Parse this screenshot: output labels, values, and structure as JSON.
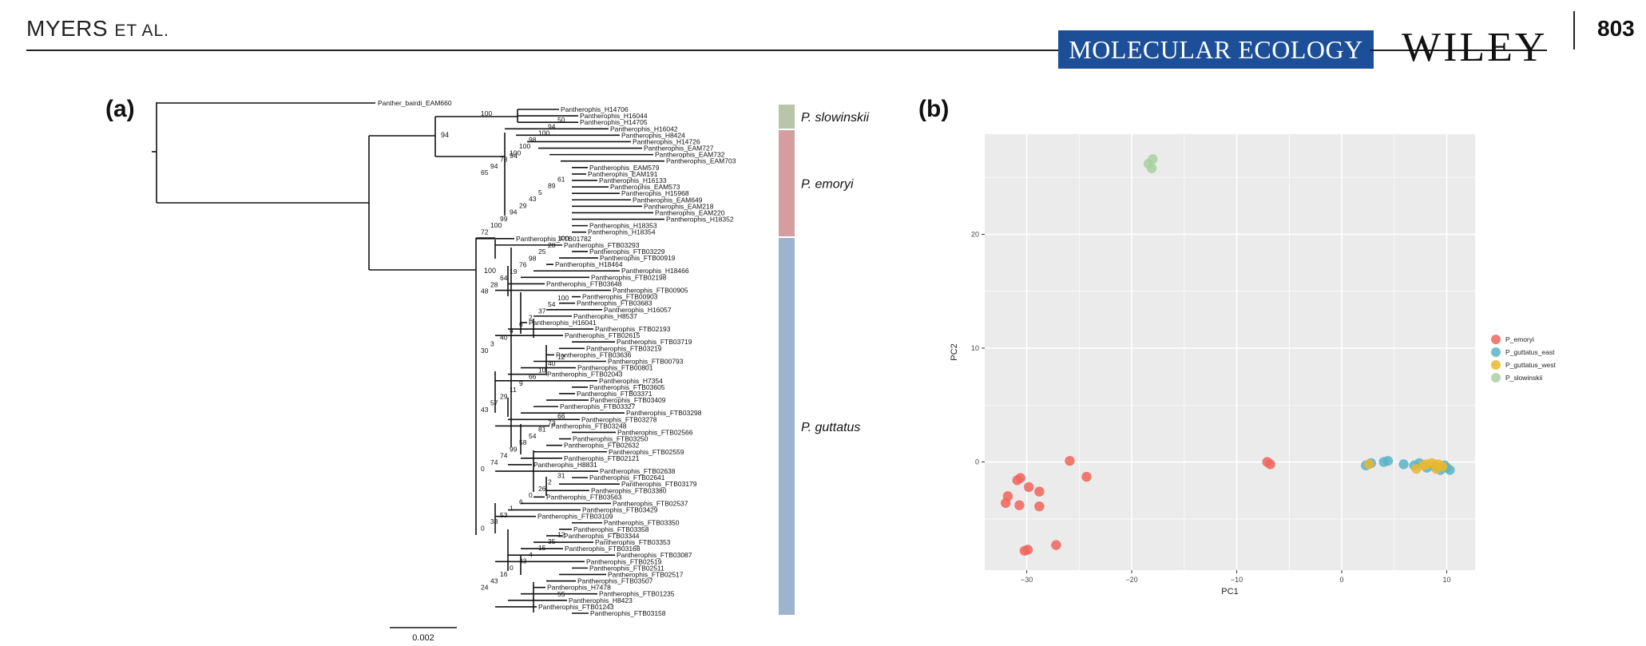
{
  "header": {
    "authors_main": "MYERS",
    "authors_suffix": "ET AL.",
    "journal": "MOLECULAR ECOLOGY",
    "publisher": "WILEY",
    "page_number": "803"
  },
  "panel_a": {
    "label": "(a)",
    "scale_bar_label": "0.002",
    "clade_labels": [
      "P. slowinskii",
      "P. emoryi",
      "P. guttatus"
    ],
    "clade_colors": [
      "#b9c4a8",
      "#d49e9e",
      "#9db4cf"
    ],
    "outgroup": "Panther_bairdi_EAM660",
    "taxa": [
      "Pantherophis_H14706",
      "Pantherophis_H16044",
      "Pantherophis_H14705",
      "Pantherophis_H16042",
      "Pantherophis_H8424",
      "Pantherophis_H14726",
      "Pantherophis_EAM727",
      "Pantherophis_EAM732",
      "Pantherophis_EAM703",
      "Pantherophis_EAM579",
      "Pantherophis_EAM191",
      "Pantherophis_H16133",
      "Pantherophis_EAM573",
      "Pantherophis_H15968",
      "Pantherophis_EAM649",
      "Pantherophis_EAM218",
      "Pantherophis_EAM220",
      "Pantherophis_H18352",
      "Pantherophis_H18353",
      "Pantherophis_H18354",
      "Pantherophis_FTB01782",
      "Pantherophis_FTB03293",
      "Pantherophis_FTB03229",
      "Pantherophis_FTB00919",
      "Pantherophis_H18464",
      "Pantherophis_H18466",
      "Pantherophis_FTB02198",
      "Pantherophis_FTB03648",
      "Pantherophis_FTB00905",
      "Pantherophis_FTB00903",
      "Pantherophis_FTB03683",
      "Pantherophis_H16057",
      "Pantherophis_H8537",
      "Pantherophis_H16041",
      "Pantherophis_FTB02193",
      "Pantherophis_FTB02615",
      "Pantherophis_FTB03719",
      "Pantherophis_FTB03219",
      "Pantherophis_FTB03636",
      "Pantherophis_FTB00793",
      "Pantherophis_FTB00801",
      "Pantherophis_FTB02043",
      "Pantherophis_H7354",
      "Pantherophis_FTB03605",
      "Pantherophis_FTB03371",
      "Pantherophis_FTB03409",
      "Pantherophis_FTB03327",
      "Pantherophis_FTB03298",
      "Pantherophis_FTB03278",
      "Pantherophis_FTB03248",
      "Pantherophis_FTB02566",
      "Pantherophis_FTB03250",
      "Pantherophis_FTB02632",
      "Pantherophis_FTB02559",
      "Pantherophis_FTB02121",
      "Pantherophis_H8831",
      "Pantherophis_FTB02638",
      "Pantherophis_FTB02641",
      "Pantherophis_FTB03179",
      "Pantherophis_FTB03380",
      "Pantherophis_FTB03563",
      "Pantherophis_FTB02537",
      "Pantherophis_FTB03429",
      "Pantherophis_FTB03109",
      "Pantherophis_FTB03350",
      "Pantherophis_FTB03358",
      "Pantherophis_FTB03344",
      "Pantherophis_FTB03353",
      "Pantherophis_FTB03168",
      "Pantherophis_FTB03087",
      "Pantherophis_FTB02519",
      "Pantherophis_FTB02511",
      "Pantherophis_FTB02517",
      "Pantherophis_FTB03507",
      "Pantherophis_H7478",
      "Pantherophis_FTB01235",
      "Pantherophis_H8423",
      "Pantherophis_FTB01243",
      "Pantherophis_FTB03158"
    ],
    "support_values": [
      "100",
      "50",
      "94",
      "100",
      "98",
      "100",
      "100",
      "73",
      "94",
      "65",
      "61",
      "89",
      "5",
      "43",
      "29",
      "94",
      "99",
      "100",
      "72",
      "100",
      "28",
      "25",
      "98",
      "76",
      "19",
      "64",
      "28",
      "48",
      "100",
      "54",
      "37",
      "2",
      "6",
      "4",
      "40",
      "3",
      "30",
      "12",
      "40",
      "10",
      "66",
      "9",
      "11",
      "29",
      "57",
      "43",
      "66",
      "73",
      "81",
      "54",
      "58",
      "99",
      "74",
      "74",
      "0",
      "31",
      "2",
      "26",
      "0",
      "6",
      "1",
      "53",
      "33",
      "0",
      "12",
      "35",
      "15",
      "4",
      "43",
      "0",
      "16",
      "43",
      "24",
      "55"
    ]
  },
  "panel_b": {
    "label": "(b)",
    "chart_data": {
      "type": "scatter",
      "xlabel": "PC1",
      "ylabel": "PC2",
      "xlim": [
        -34,
        12.7
      ],
      "ylim": [
        -9.5,
        28.8
      ],
      "x_ticks": [
        -30,
        -20,
        -10,
        0,
        10
      ],
      "x_tick_labels": [
        "−30",
        "−20",
        "−10",
        "0",
        "10"
      ],
      "y_ticks": [
        0,
        10,
        20
      ],
      "y_tick_labels": [
        "0",
        "10",
        "20"
      ],
      "grid": true,
      "legend_position": "right",
      "series": [
        {
          "name": "P_emoryi",
          "color": "#f0655c",
          "points": [
            [
              -30.6,
              -1.4
            ],
            [
              -30.9,
              -1.6
            ],
            [
              -29.8,
              -2.2
            ],
            [
              -28.8,
              -2.6
            ],
            [
              -31.8,
              -3.0
            ],
            [
              -32.0,
              -3.6
            ],
            [
              -30.7,
              -3.8
            ],
            [
              -28.8,
              -3.9
            ],
            [
              -25.9,
              0.1
            ],
            [
              -24.3,
              -1.3
            ],
            [
              -27.2,
              -7.3
            ],
            [
              -29.9,
              -7.7
            ],
            [
              -30.2,
              -7.8
            ],
            [
              -7.1,
              0.0
            ],
            [
              -6.8,
              -0.2
            ]
          ]
        },
        {
          "name": "P_guttatus_east",
          "color": "#5cb3c9",
          "points": [
            [
              2.3,
              -0.3
            ],
            [
              2.8,
              -0.1
            ],
            [
              4.4,
              0.1
            ],
            [
              4.0,
              0.0
            ],
            [
              5.9,
              -0.2
            ],
            [
              7.4,
              -0.1
            ],
            [
              8.1,
              -0.5
            ],
            [
              9.8,
              -0.3
            ],
            [
              10.3,
              -0.7
            ],
            [
              10.0,
              -0.5
            ],
            [
              8.8,
              -0.4
            ],
            [
              9.4,
              -0.7
            ],
            [
              6.9,
              -0.3
            ]
          ]
        },
        {
          "name": "P_guttatus_west",
          "color": "#e8b92c",
          "points": [
            [
              2.6,
              -0.2
            ],
            [
              7.1,
              -0.6
            ],
            [
              7.8,
              -0.3
            ],
            [
              8.6,
              -0.1
            ],
            [
              9.2,
              -0.2
            ],
            [
              9.6,
              -0.4
            ],
            [
              9.0,
              -0.6
            ],
            [
              8.1,
              -0.2
            ]
          ]
        },
        {
          "name": "P_slowinskii",
          "color": "#a9cfa2",
          "points": [
            [
              -18.4,
              26.2
            ],
            [
              -18.0,
              26.6
            ],
            [
              -18.1,
              25.8
            ]
          ]
        }
      ]
    }
  }
}
